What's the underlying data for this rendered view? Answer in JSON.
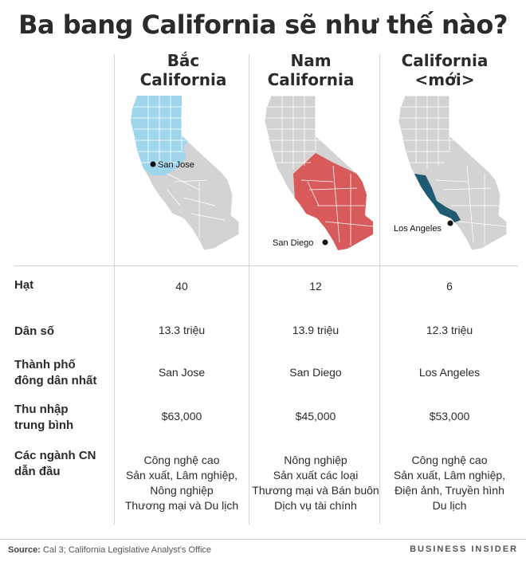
{
  "title": "Ba bang California sẽ như thế nào?",
  "columns": [
    {
      "heading_line1": "Bắc",
      "heading_line2": "California",
      "city_marker": "San Jose",
      "highlight_color": "#9fd6ee",
      "counties": "40",
      "population": "13.3 triệu",
      "largest_city": "San Jose",
      "income": "$63,000",
      "industries": [
        "Công nghệ cao",
        "Sản xuất, Lâm nghiệp,",
        "Nông nghiệp",
        "Thương mại và Du lịch"
      ]
    },
    {
      "heading_line1": "Nam",
      "heading_line2": "California",
      "city_marker": "San Diego",
      "highlight_color": "#d85a5a",
      "counties": "12",
      "population": "13.9 triệu",
      "largest_city": "San Diego",
      "income": "$45,000",
      "industries": [
        "Nông nghiệp",
        "Sản xuất các loại",
        "Thương mại và Bán buôn",
        "Dịch vụ tài chính"
      ]
    },
    {
      "heading_line1": "California",
      "heading_line2": "<mới>",
      "city_marker": "Los Angeles",
      "highlight_color": "#1f5a73",
      "counties": "6",
      "population": "12.3 triệu",
      "largest_city": "Los Angeles",
      "income": "$53,000",
      "industries": [
        "Công nghệ cao",
        "Sản xuất, Lâm nghiệp,",
        "Điện ảnh, Truyền hình",
        "Du lịch"
      ]
    }
  ],
  "rows": {
    "counties": "Hạt",
    "population": "Dân số",
    "largest_city_line1": "Thành phố",
    "largest_city_line2": "đông dân nhất",
    "income_line1": "Thu nhập",
    "income_line2": "trung bình",
    "industries_line1": "Các ngành CN",
    "industries_line2": "dẫn đầu"
  },
  "footer": {
    "source_label": "Source:",
    "source_text": " Cal 3; California Legislative Analyst's Office",
    "brand": "BUSINESS INSIDER"
  },
  "colors": {
    "base_map": "#d3d3d3",
    "county_lines": "#ffffff"
  }
}
